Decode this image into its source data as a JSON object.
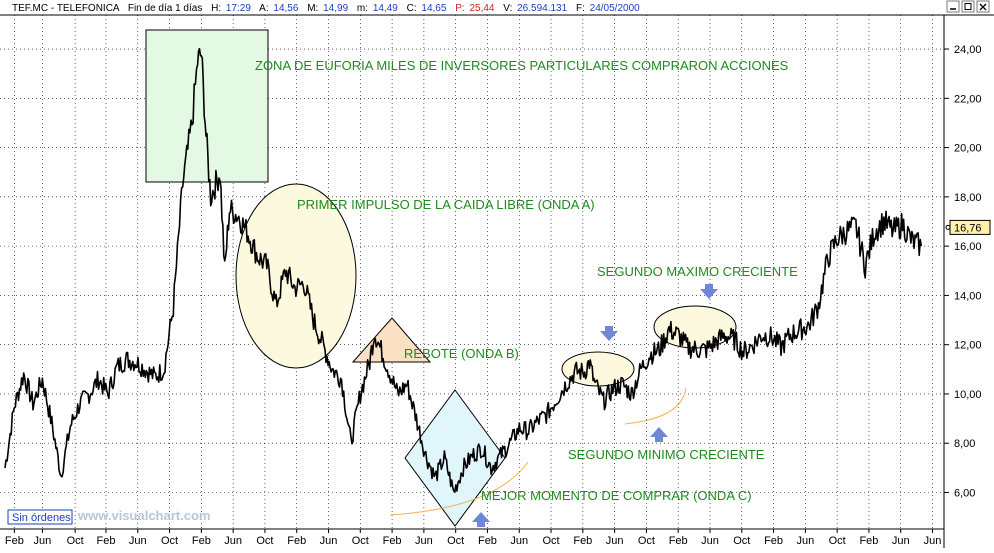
{
  "header": {
    "symbol": "TEF.MC - TELEFONICA",
    "period": "Fin de día 1 días",
    "h_label": "H:",
    "h_value": "17:29",
    "a_label": "A:",
    "a_value": "14,56",
    "m_label": "M:",
    "m_value": "14,99",
    "mi_label": "m:",
    "mi_value": "14,49",
    "c_label": "C:",
    "c_value": "14,65",
    "p_label": "P:",
    "p_value": "25,44",
    "v_label": "V:",
    "v_value": "26.594.131",
    "f_label": "F:",
    "f_value": "24/05/2000"
  },
  "footer": {
    "orders_button": "Sin órdenes",
    "watermark": "www.visualchart.com"
  },
  "colors": {
    "grid": "#000000",
    "price": "#000000",
    "annotation": "#1f8a1f",
    "arrow": "#6f88d6",
    "last_price_bg": "#fff3a8"
  },
  "chart_data": {
    "type": "line",
    "title": "",
    "xlabel": "",
    "ylabel": "",
    "ylim": [
      4.6,
      25.3
    ],
    "y_ticks": [
      6,
      8,
      10,
      12,
      14,
      16,
      18,
      20,
      22,
      24
    ],
    "y_tick_labels": [
      "6,00",
      "8,00",
      "10,00",
      "12,00",
      "14,00",
      "16,00",
      "18,00",
      "20,00",
      "22,00",
      "24,00"
    ],
    "x_range": [
      0,
      100
    ],
    "x_ticks": [
      {
        "x": 1,
        "label": "Feb"
      },
      {
        "x": 4,
        "label": "Jun"
      },
      {
        "x": 7.5,
        "label": "Oct"
      },
      {
        "x": 10.8,
        "label": "Feb"
      },
      {
        "x": 14.2,
        "label": "Jun"
      },
      {
        "x": 17.6,
        "label": "Oct"
      },
      {
        "x": 21,
        "label": "Feb"
      },
      {
        "x": 24.4,
        "label": "Jun"
      },
      {
        "x": 27.8,
        "label": "Oct"
      },
      {
        "x": 31.2,
        "label": "Feb"
      },
      {
        "x": 34.6,
        "label": "Jun"
      },
      {
        "x": 38,
        "label": "Oct"
      },
      {
        "x": 41.4,
        "label": "Feb"
      },
      {
        "x": 44.8,
        "label": "Jun"
      },
      {
        "x": 48.2,
        "label": "Oct"
      },
      {
        "x": 51.6,
        "label": "Feb"
      },
      {
        "x": 55,
        "label": "Jun"
      },
      {
        "x": 58.4,
        "label": "Oct"
      },
      {
        "x": 61.8,
        "label": "Feb"
      },
      {
        "x": 65.2,
        "label": "Jun"
      },
      {
        "x": 68.6,
        "label": "Oct"
      },
      {
        "x": 72,
        "label": "Feb"
      },
      {
        "x": 75.4,
        "label": "Jun"
      },
      {
        "x": 78.8,
        "label": "Oct"
      },
      {
        "x": 82.2,
        "label": "Feb"
      },
      {
        "x": 85.6,
        "label": "Jun"
      },
      {
        "x": 89,
        "label": "Oct"
      },
      {
        "x": 92.4,
        "label": "Feb"
      },
      {
        "x": 95.8,
        "label": "Jun"
      },
      {
        "x": 99.2,
        "label": "Jun"
      }
    ],
    "last_price_label": "16,76",
    "last_price": 16.76,
    "series": [
      {
        "points": [
          [
            0,
            7.0
          ],
          [
            1,
            9.5
          ],
          [
            2,
            10.8
          ],
          [
            3,
            9.6
          ],
          [
            4,
            10.6
          ],
          [
            5,
            8.8
          ],
          [
            6,
            6.7
          ],
          [
            7,
            8.7
          ],
          [
            8,
            9.6
          ],
          [
            9,
            10.0
          ],
          [
            10,
            10.6
          ],
          [
            11,
            10.0
          ],
          [
            12,
            11.1
          ],
          [
            13,
            11.4
          ],
          [
            14,
            11.3
          ],
          [
            15,
            11.0
          ],
          [
            16,
            10.7
          ],
          [
            17,
            11.0
          ],
          [
            18,
            13.5
          ],
          [
            19,
            18.5
          ],
          [
            20,
            21.0
          ],
          [
            20.6,
            23.5
          ],
          [
            21,
            23.8
          ],
          [
            21.5,
            20.5
          ],
          [
            22,
            18.0
          ],
          [
            23,
            19.0
          ],
          [
            23.5,
            15.0
          ],
          [
            24,
            17.5
          ],
          [
            25,
            17.2
          ],
          [
            26,
            16.5
          ],
          [
            27,
            15.6
          ],
          [
            28,
            15.2
          ],
          [
            29,
            13.6
          ],
          [
            30,
            15.0
          ],
          [
            31,
            14.3
          ],
          [
            32,
            14.5
          ],
          [
            33,
            13.0
          ],
          [
            34,
            12.0
          ],
          [
            35,
            11.0
          ],
          [
            36,
            10.6
          ],
          [
            37,
            8.0
          ],
          [
            38,
            10.0
          ],
          [
            39,
            11.3
          ],
          [
            39.5,
            12.5
          ],
          [
            40,
            12.0
          ],
          [
            41,
            11.0
          ],
          [
            42,
            10.0
          ],
          [
            43,
            10.4
          ],
          [
            44,
            9.0
          ],
          [
            45,
            7.5
          ],
          [
            46,
            6.6
          ],
          [
            47,
            7.4
          ],
          [
            48,
            6.0
          ],
          [
            49,
            7.0
          ],
          [
            50,
            7.5
          ],
          [
            51,
            7.8
          ],
          [
            52,
            7.0
          ],
          [
            53,
            7.5
          ],
          [
            54,
            8.0
          ],
          [
            55,
            8.6
          ],
          [
            56,
            8.5
          ],
          [
            57,
            8.9
          ],
          [
            58,
            9.2
          ],
          [
            59,
            9.8
          ],
          [
            60,
            10.4
          ],
          [
            61,
            10.9
          ],
          [
            62,
            10.9
          ],
          [
            62.5,
            11.3
          ],
          [
            63,
            10.5
          ],
          [
            64,
            9.7
          ],
          [
            65,
            10.2
          ],
          [
            66,
            10.4
          ],
          [
            67,
            10.0
          ],
          [
            68,
            11.0
          ],
          [
            69,
            11.6
          ],
          [
            70,
            11.8
          ],
          [
            71,
            12.6
          ],
          [
            72,
            12.4
          ],
          [
            73,
            11.9
          ],
          [
            74,
            11.8
          ],
          [
            75,
            11.8
          ],
          [
            76,
            12.1
          ],
          [
            77,
            12.4
          ],
          [
            78,
            12.2
          ],
          [
            79,
            11.7
          ],
          [
            80,
            12.0
          ],
          [
            81,
            12.4
          ],
          [
            82,
            12.3
          ],
          [
            83,
            11.9
          ],
          [
            84,
            12.4
          ],
          [
            85,
            12.6
          ],
          [
            86,
            12.8
          ],
          [
            87,
            13.6
          ],
          [
            88,
            15.5
          ],
          [
            89,
            16.3
          ],
          [
            90,
            16.6
          ],
          [
            91,
            16.8
          ],
          [
            92,
            15.2
          ],
          [
            93,
            16.6
          ],
          [
            94,
            17.0
          ],
          [
            95,
            16.6
          ],
          [
            96,
            16.9
          ],
          [
            97,
            16.2
          ],
          [
            98,
            16.0
          ]
        ]
      }
    ]
  },
  "annotations": {
    "euphoria": "ZONA DE EUFORIA MILES DE INVERSORES PARTICULARES COMPRARON ACCIONES",
    "wave_a": "PRIMER IMPULSO DE LA CAIDA LIBRE (ONDA A)",
    "wave_b": "REBOTE (ONDA B)",
    "wave_c": "MEJOR MOMENTO DE COMPRAR (ONDA C)",
    "second_max": "SEGUNDO MAXIMO CRECIENTE",
    "second_min": "SEGUNDO MINIMO CRECIENTE"
  }
}
